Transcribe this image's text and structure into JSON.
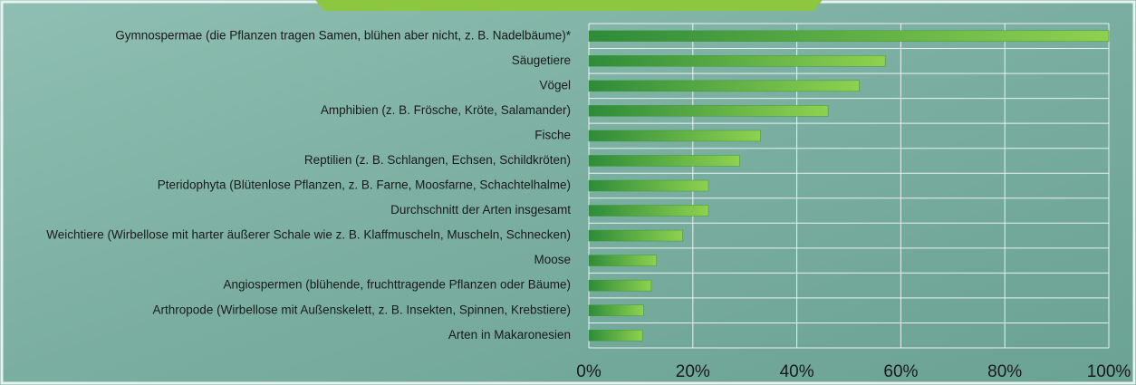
{
  "chart_data": {
    "type": "bar",
    "orientation": "horizontal",
    "categories": [
      "Gymnospermae (die Pflanzen tragen Samen, blühen aber nicht, z. B. Nadelbäume)*",
      "Säugetiere",
      "Vögel",
      "Amphibien (z. B. Frösche, Kröte, Salamander)",
      "Fische",
      "Reptilien (z. B. Schlangen, Echsen, Schildkröten)",
      "Pteridophyta (Blütenlose Pflanzen, z. B. Farne, Moosfarne, Schachtelhalme)",
      "Durchschnitt der Arten insgesamt",
      "Weichtiere (Wirbellose mit harter äußerer Schale wie z. B. Klaffmuscheln, Muscheln, Schnecken)",
      "Moose",
      "Angiospermen (blühende, fruchttragende Pflanzen oder Bäume)",
      "Arthropode (Wirbellose mit Außenskelett, z. B. Insekten, Spinnen, Krebstiere)",
      "Arten in Makaronesien"
    ],
    "values": [
      100,
      57,
      52,
      46,
      33,
      29,
      23,
      23,
      18,
      13,
      12,
      10.5,
      10.3
    ],
    "color": "#3a9a3a",
    "xlim": [
      0,
      100
    ],
    "xticks": [
      {
        "value": 0,
        "label": "0%"
      },
      {
        "value": 20,
        "label": "20%"
      },
      {
        "value": 40,
        "label": "40%"
      },
      {
        "value": 60,
        "label": "60%"
      },
      {
        "value": 80,
        "label": "80%"
      },
      {
        "value": 100,
        "label": "100%"
      }
    ],
    "grid": true
  }
}
